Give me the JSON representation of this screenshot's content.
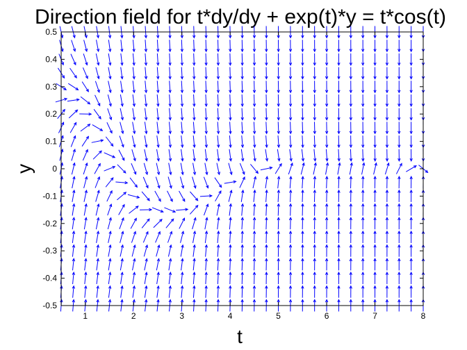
{
  "chart_data": {
    "type": "quiver",
    "title": "Direction field for t*dy/dy + exp(t)*y = t*cos(t)",
    "xlabel": "t",
    "ylabel": "y",
    "xlim": [
      0.5,
      8
    ],
    "ylim": [
      -0.5,
      0.5
    ],
    "x_ticks": [
      1,
      2,
      3,
      4,
      5,
      6,
      7,
      8
    ],
    "x_tick_labels": [
      "1",
      "2",
      "3",
      "4",
      "5",
      "6",
      "7",
      "8"
    ],
    "y_ticks": [
      0.5,
      0.4,
      0.3,
      0.2,
      0.1,
      0,
      -0.1,
      -0.2,
      -0.3,
      -0.4,
      -0.5
    ],
    "y_tick_labels": [
      "0.5",
      "0.4",
      "0.3",
      "0.2",
      "0.1",
      "0",
      "-0.1",
      "-0.2",
      "-0.3",
      "-0.4",
      "-0.5"
    ],
    "grid": false,
    "field": {
      "equation": "dy/dt = cos(t) - exp(t)*y/t",
      "t_start": 0.5,
      "t_step": 0.25,
      "t_count": 31,
      "y_start": -0.5,
      "y_step": 0.05,
      "y_count": 21
    },
    "colors": {
      "arrow": "#0000ff",
      "axes": "#000000",
      "background": "#ffffff"
    }
  }
}
